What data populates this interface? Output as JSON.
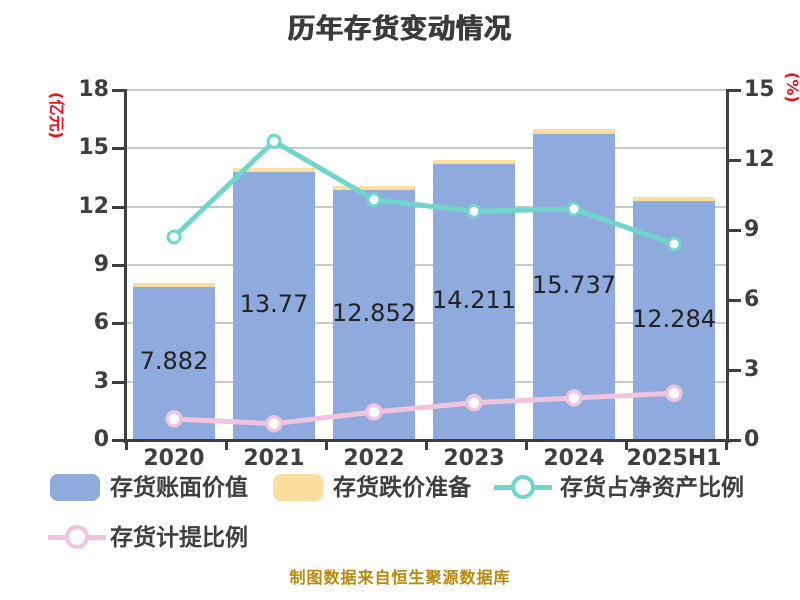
{
  "chart_data": {
    "type": "bar",
    "title": "历年存货变动情况",
    "categories": [
      "2020",
      "2021",
      "2022",
      "2023",
      "2024",
      "2025H1"
    ],
    "series": [
      {
        "name": "存货账面价值",
        "type": "bar",
        "axis": "left",
        "color": "#8FAADC",
        "values": [
          7.882,
          13.77,
          12.852,
          14.211,
          15.737,
          12.284
        ],
        "labels": [
          "7.882",
          "13.77",
          "12.852",
          "14.211",
          "15.737",
          "12.284"
        ]
      },
      {
        "name": "存货跌价准备",
        "type": "bar-stack-cap",
        "axis": "left",
        "color": "#FCDE9E",
        "values": [
          0.06,
          0.08,
          0.13,
          0.21,
          0.26,
          0.23
        ]
      },
      {
        "name": "存货占净资产比例",
        "type": "line",
        "axis": "right",
        "color": "#6FD5CD",
        "marker": "white-circle",
        "values": [
          8.7,
          12.8,
          10.3,
          9.8,
          9.9,
          8.4
        ]
      },
      {
        "name": "存货计提比例",
        "type": "line",
        "axis": "right",
        "color": "#F0C4DF",
        "marker": "white-circle",
        "values": [
          0.9,
          0.7,
          1.2,
          1.6,
          1.8,
          2.0
        ]
      }
    ],
    "left_axis": {
      "unit": "(亿元)",
      "ticks": [
        0,
        3,
        6,
        9,
        12,
        15,
        18
      ],
      "max": 18
    },
    "right_axis": {
      "unit": "(%)",
      "ticks": [
        0,
        3,
        6,
        9,
        12,
        15
      ],
      "max": 15
    },
    "grid": true,
    "legend_position": "bottom-left",
    "footer": "制图数据来自恒生聚源数据库"
  },
  "colors": {
    "background": "#ffffff",
    "title": "#3b3b3b",
    "axis_text": "#3f3f3f",
    "axis_line": "#3f3f3f",
    "grid": "#c9c9c9",
    "bar_label": "#222222",
    "unit_red": "#e8131d",
    "footer": "#b9870b"
  }
}
